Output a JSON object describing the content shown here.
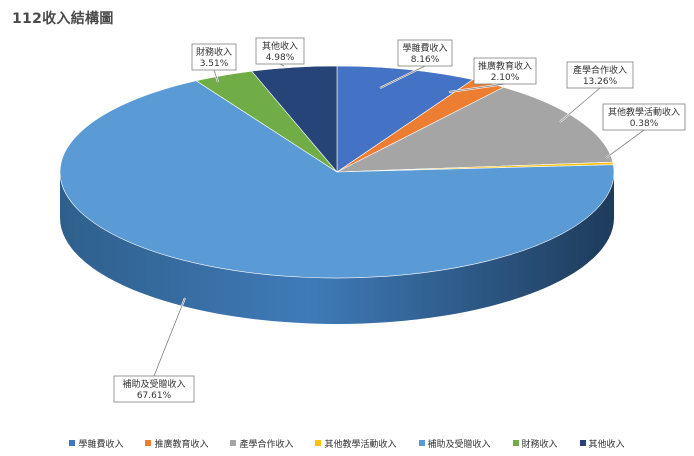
{
  "title": "112收入結構圖",
  "chart_data": {
    "type": "pie",
    "title": "112收入結構圖",
    "legend_position": "bottom",
    "series": [
      {
        "name": "學雜費收入",
        "value": 8.16,
        "label": "8.16%",
        "color": "#4472C4"
      },
      {
        "name": "推廣教育收入",
        "value": 2.1,
        "label": "2.10%",
        "color": "#ED7D31"
      },
      {
        "name": "產學合作收入",
        "value": 13.26,
        "label": "13.26%",
        "color": "#A5A5A5"
      },
      {
        "name": "其他教學活動收入",
        "value": 0.38,
        "label": "0.38%",
        "color": "#FFC000"
      },
      {
        "name": "補助及受贈收入",
        "value": 67.61,
        "label": "67.61%",
        "color": "#5B9BD5"
      },
      {
        "name": "財務收入",
        "value": 3.51,
        "label": "3.51%",
        "color": "#70AD47"
      },
      {
        "name": "其他收入",
        "value": 4.98,
        "label": "4.98%",
        "color": "#264478"
      }
    ]
  }
}
